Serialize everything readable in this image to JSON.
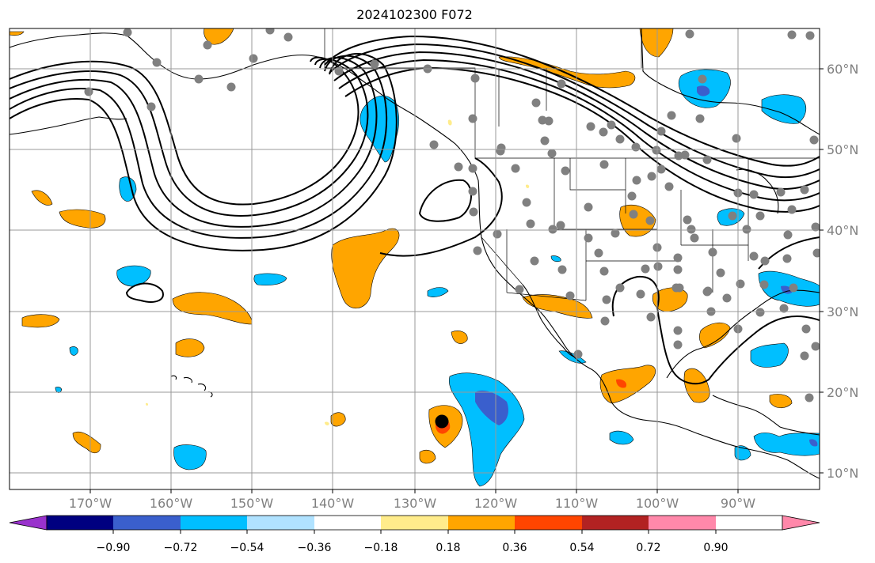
{
  "title": "2024102300 F072",
  "lon_labels": [
    "170°W",
    "160°W",
    "150°W",
    "140°W",
    "130°W",
    "120°W",
    "110°W",
    "100°W",
    "90°W"
  ],
  "lat_labels": [
    "60°N",
    "50°N",
    "40°N",
    "30°N",
    "20°N",
    "10°N"
  ],
  "colorbar": {
    "labels": [
      "−0.90",
      "−0.72",
      "−0.54",
      "−0.36",
      "−0.18",
      "0.18",
      "0.36",
      "0.54",
      "0.72",
      "0.90"
    ],
    "colors": [
      "#9932CC",
      "#000080",
      "#3A5FCD",
      "#00BFFF",
      "#B0E2FF",
      "#FFFFFF",
      "#FFEC8B",
      "#FFA500",
      "#FF4500",
      "#B22222",
      "#FF88AA"
    ]
  },
  "colors": {
    "grid": "#999999",
    "tick_label": "#808080",
    "station": "#808080",
    "contour": "#000000"
  }
}
